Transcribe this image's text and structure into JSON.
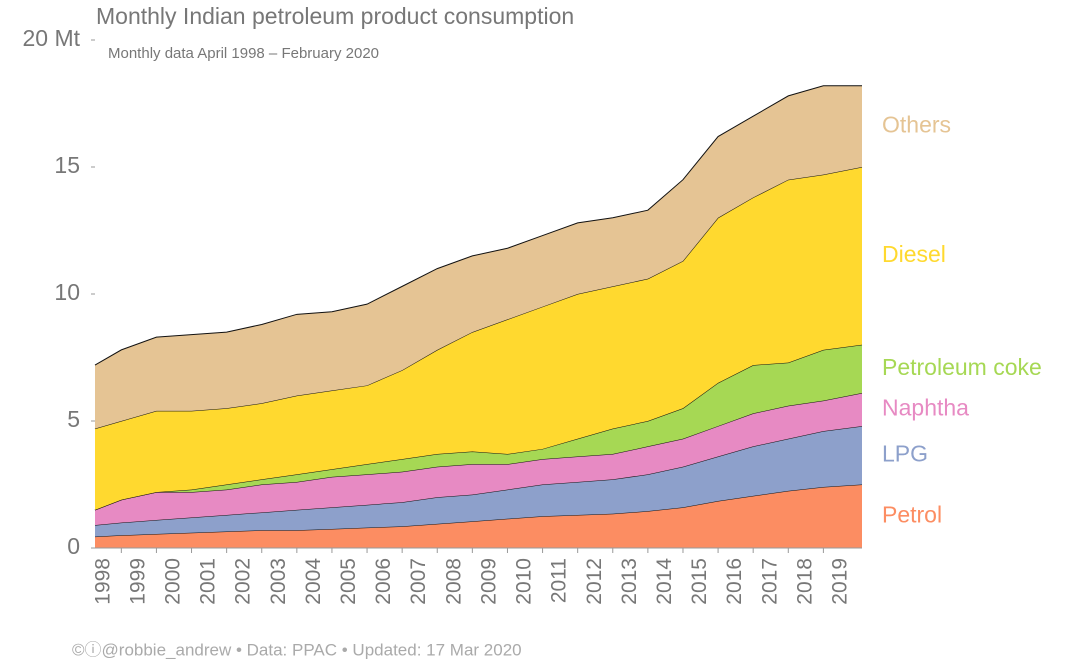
{
  "chart_data": {
    "type": "stacked_area",
    "title": "Monthly Indian petroleum product consumption",
    "subtitle": "Monthly data April 1998 – February 2020",
    "footer": "©ⓘ@robbie_andrew • Data: PPAC • Updated: 17 Mar 2020",
    "x": [
      1998.25,
      1999,
      2000,
      2001,
      2002,
      2003,
      2004,
      2005,
      2006,
      2007,
      2008,
      2009,
      2010,
      2011,
      2012,
      2013,
      2014,
      2015,
      2016,
      2017,
      2018,
      2019,
      2020.1
    ],
    "series": [
      {
        "name": "Petrol",
        "color": "#fc8d62",
        "values": [
          0.45,
          0.5,
          0.55,
          0.6,
          0.65,
          0.7,
          0.7,
          0.75,
          0.8,
          0.85,
          0.95,
          1.05,
          1.15,
          1.25,
          1.3,
          1.35,
          1.45,
          1.6,
          1.85,
          2.05,
          2.25,
          2.4,
          2.5
        ]
      },
      {
        "name": "LPG",
        "color": "#8da0cb",
        "values": [
          0.45,
          0.5,
          0.55,
          0.6,
          0.65,
          0.7,
          0.8,
          0.85,
          0.9,
          0.95,
          1.05,
          1.05,
          1.15,
          1.25,
          1.3,
          1.35,
          1.45,
          1.6,
          1.75,
          1.95,
          2.05,
          2.2,
          2.3
        ]
      },
      {
        "name": "Naphtha",
        "color": "#e78ac3",
        "values": [
          0.6,
          0.9,
          1.1,
          1.0,
          1.0,
          1.1,
          1.1,
          1.2,
          1.2,
          1.2,
          1.2,
          1.2,
          1.0,
          1.0,
          1.0,
          1.0,
          1.1,
          1.1,
          1.2,
          1.3,
          1.3,
          1.2,
          1.3
        ]
      },
      {
        "name": "Petroleum coke",
        "color": "#a6d854",
        "values": [
          0,
          0,
          0,
          0.1,
          0.2,
          0.2,
          0.3,
          0.3,
          0.4,
          0.5,
          0.5,
          0.5,
          0.4,
          0.4,
          0.7,
          1.0,
          1.0,
          1.2,
          1.7,
          1.9,
          1.7,
          2.0,
          1.9
        ]
      },
      {
        "name": "Diesel",
        "color": "#ffd92f",
        "values": [
          3.2,
          3.1,
          3.2,
          3.1,
          3.0,
          3.0,
          3.1,
          3.1,
          3.1,
          3.5,
          4.1,
          4.7,
          5.3,
          5.6,
          5.7,
          5.6,
          5.6,
          5.8,
          6.5,
          6.6,
          7.2,
          6.9,
          7.0
        ]
      },
      {
        "name": "Others",
        "color": "#e5c494",
        "values": [
          2.5,
          2.8,
          2.9,
          3.0,
          3.0,
          3.1,
          3.2,
          3.1,
          3.2,
          3.3,
          3.2,
          3.0,
          2.8,
          2.8,
          2.8,
          2.7,
          2.7,
          3.2,
          3.2,
          3.2,
          3.3,
          3.5,
          3.2
        ]
      }
    ],
    "xlim": [
      1998.25,
      2020.1
    ],
    "xticks": [
      1998,
      1999,
      2000,
      2001,
      2002,
      2003,
      2004,
      2005,
      2006,
      2007,
      2008,
      2009,
      2010,
      2011,
      2012,
      2013,
      2014,
      2015,
      2016,
      2017,
      2018,
      2019
    ],
    "ylim": [
      0,
      20
    ],
    "yticks": [
      0,
      5,
      10,
      15,
      {
        "value": 20,
        "label": "20 Mt"
      }
    ],
    "grid": false
  }
}
